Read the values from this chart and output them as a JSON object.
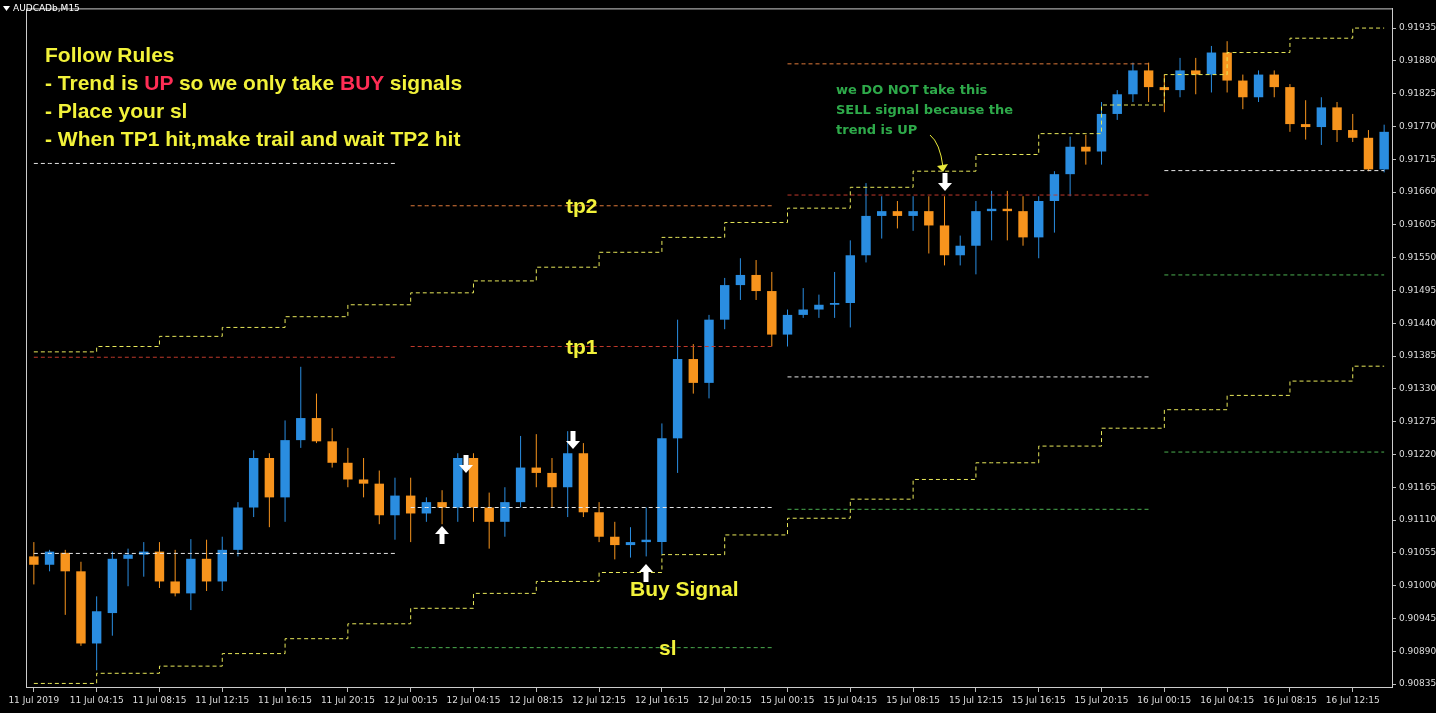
{
  "chart_data": {
    "type": "candlestick",
    "title": "AUDCADb,M15",
    "categories": [
      "11 Jul 2019",
      null,
      null,
      null,
      "11 Jul 04:15",
      null,
      null,
      null,
      "11 Jul 08:15",
      null,
      null,
      null,
      "11 Jul 12:15",
      null,
      null,
      null,
      "11 Jul 16:15",
      null,
      null,
      null,
      "11 Jul 20:15",
      null,
      null,
      null,
      "12 Jul 00:15",
      null,
      null,
      null,
      "12 Jul 04:15",
      null,
      null,
      null,
      "12 Jul 08:15",
      null,
      null,
      null,
      "12 Jul 12:15",
      null,
      null,
      null,
      "12 Jul 16:15",
      null,
      null,
      null,
      "12 Jul 20:15",
      null,
      null,
      null,
      "15 Jul 00:15",
      null,
      null,
      null,
      "15 Jul 04:15",
      null,
      null,
      null,
      "15 Jul 08:15",
      null,
      null,
      null,
      "15 Jul 12:15",
      null,
      null,
      null,
      "15 Jul 16:15",
      null,
      null,
      null,
      "15 Jul 20:15",
      null,
      null,
      null,
      "16 Jul 00:15",
      null,
      null,
      null,
      "16 Jul 04:15",
      null,
      null,
      null,
      "16 Jul 08:15",
      null,
      null,
      null,
      "16 Jul 12:15",
      null,
      null
    ],
    "ohlc": [
      [
        0.91049,
        0.91073,
        0.91002,
        0.91035
      ],
      [
        0.91035,
        0.9106,
        0.91024,
        0.91057
      ],
      [
        0.91055,
        0.9106,
        0.90951,
        0.91024
      ],
      [
        0.91024,
        0.9104,
        0.90899,
        0.90903
      ],
      [
        0.90903,
        0.90982,
        0.90858,
        0.90957
      ],
      [
        0.90954,
        0.91057,
        0.90916,
        0.91045
      ],
      [
        0.91045,
        0.91062,
        0.90999,
        0.91052
      ],
      [
        0.91052,
        0.91073,
        0.91015,
        0.91057
      ],
      [
        0.91057,
        0.91073,
        0.90996,
        0.91007
      ],
      [
        0.91007,
        0.9106,
        0.90982,
        0.90987
      ],
      [
        0.90987,
        0.91078,
        0.90959,
        0.91045
      ],
      [
        0.91045,
        0.91077,
        0.90991,
        0.91007
      ],
      [
        0.91007,
        0.91082,
        0.90991,
        0.9106
      ],
      [
        0.9106,
        0.9114,
        0.91049,
        0.91131
      ],
      [
        0.91131,
        0.91227,
        0.91115,
        0.91214
      ],
      [
        0.91214,
        0.91222,
        0.91098,
        0.91148
      ],
      [
        0.91148,
        0.91277,
        0.91107,
        0.91244
      ],
      [
        0.91244,
        0.91367,
        0.91231,
        0.91281
      ],
      [
        0.91281,
        0.91322,
        0.91239,
        0.91242
      ],
      [
        0.91242,
        0.91264,
        0.91198,
        0.91206
      ],
      [
        0.91206,
        0.91231,
        0.91165,
        0.91178
      ],
      [
        0.91178,
        0.91214,
        0.91148,
        0.91171
      ],
      [
        0.91171,
        0.91193,
        0.91103,
        0.91118
      ],
      [
        0.91118,
        0.91181,
        0.91077,
        0.91151
      ],
      [
        0.91151,
        0.91181,
        0.91073,
        0.91121
      ],
      [
        0.91121,
        0.91148,
        0.91107,
        0.9114
      ],
      [
        0.9114,
        0.9116,
        0.91103,
        0.91131
      ],
      [
        0.91131,
        0.91222,
        0.91107,
        0.91214
      ],
      [
        0.91214,
        0.91222,
        0.91107,
        0.91131
      ],
      [
        0.91131,
        0.91156,
        0.91062,
        0.91107
      ],
      [
        0.91107,
        0.91165,
        0.91082,
        0.9114
      ],
      [
        0.9114,
        0.91251,
        0.91131,
        0.91198
      ],
      [
        0.91198,
        0.91254,
        0.91165,
        0.91189
      ],
      [
        0.91189,
        0.91214,
        0.91131,
        0.91165
      ],
      [
        0.91165,
        0.91259,
        0.91115,
        0.91222
      ],
      [
        0.91222,
        0.91239,
        0.91115,
        0.91123
      ],
      [
        0.91123,
        0.9114,
        0.91073,
        0.91082
      ],
      [
        0.91082,
        0.91107,
        0.91044,
        0.91068
      ],
      [
        0.91068,
        0.91098,
        0.91047,
        0.91073
      ],
      [
        0.91073,
        0.91131,
        0.91049,
        0.91077
      ],
      [
        0.91073,
        0.91272,
        0.91052,
        0.91247
      ],
      [
        0.91247,
        0.91446,
        0.91189,
        0.9138
      ],
      [
        0.9138,
        0.91405,
        0.91322,
        0.9134
      ],
      [
        0.9134,
        0.91454,
        0.91314,
        0.91446
      ],
      [
        0.91446,
        0.91516,
        0.9143,
        0.91504
      ],
      [
        0.91504,
        0.91549,
        0.91479,
        0.91521
      ],
      [
        0.91521,
        0.91546,
        0.91479,
        0.91494
      ],
      [
        0.91494,
        0.91526,
        0.91401,
        0.91421
      ],
      [
        0.91421,
        0.91463,
        0.91401,
        0.91454
      ],
      [
        0.91454,
        0.91499,
        0.91449,
        0.91463
      ],
      [
        0.91463,
        0.91488,
        0.91449,
        0.91471
      ],
      [
        0.91471,
        0.91526,
        0.91449,
        0.91474
      ],
      [
        0.91474,
        0.91579,
        0.91433,
        0.91554
      ],
      [
        0.91554,
        0.91675,
        0.91542,
        0.9162
      ],
      [
        0.9162,
        0.91653,
        0.91582,
        0.91628
      ],
      [
        0.91628,
        0.91645,
        0.91599,
        0.9162
      ],
      [
        0.9162,
        0.91653,
        0.91595,
        0.91628
      ],
      [
        0.91628,
        0.91653,
        0.91557,
        0.91604
      ],
      [
        0.91604,
        0.91653,
        0.91537,
        0.91554
      ],
      [
        0.91554,
        0.91587,
        0.91537,
        0.9157
      ],
      [
        0.9157,
        0.91645,
        0.91522,
        0.91628
      ],
      [
        0.91628,
        0.91662,
        0.91579,
        0.91632
      ],
      [
        0.91632,
        0.91662,
        0.91579,
        0.91628
      ],
      [
        0.91628,
        0.91653,
        0.9157,
        0.91584
      ],
      [
        0.91584,
        0.91653,
        0.91549,
        0.91645
      ],
      [
        0.91645,
        0.91695,
        0.91592,
        0.9169
      ],
      [
        0.9169,
        0.91753,
        0.91653,
        0.91736
      ],
      [
        0.91736,
        0.91756,
        0.91706,
        0.91728
      ],
      [
        0.91728,
        0.91811,
        0.91706,
        0.91791
      ],
      [
        0.91791,
        0.91831,
        0.91781,
        0.91824
      ],
      [
        0.91824,
        0.91877,
        0.91811,
        0.91864
      ],
      [
        0.91864,
        0.91877,
        0.91811,
        0.91836
      ],
      [
        0.91836,
        0.91857,
        0.91794,
        0.91831
      ],
      [
        0.91831,
        0.91885,
        0.91819,
        0.91864
      ],
      [
        0.91864,
        0.91885,
        0.91824,
        0.91857
      ],
      [
        0.91857,
        0.91905,
        0.91827,
        0.91894
      ],
      [
        0.91894,
        0.91913,
        0.91827,
        0.91847
      ],
      [
        0.91847,
        0.91857,
        0.91799,
        0.91819
      ],
      [
        0.91819,
        0.91864,
        0.91811,
        0.91857
      ],
      [
        0.91857,
        0.91864,
        0.91819,
        0.91836
      ],
      [
        0.91836,
        0.91841,
        0.91761,
        0.91774
      ],
      [
        0.91774,
        0.91814,
        0.91748,
        0.91769
      ],
      [
        0.91769,
        0.91819,
        0.91739,
        0.91802
      ],
      [
        0.91802,
        0.91811,
        0.91744,
        0.91764
      ],
      [
        0.91764,
        0.91791,
        0.91744,
        0.91751
      ],
      [
        0.91751,
        0.91764,
        0.91695,
        0.91698
      ],
      [
        0.91698,
        0.91773,
        0.91693,
        0.91761
      ]
    ],
    "colors": [
      "#f7941d",
      "#2a8de0",
      "#f7941d",
      "#f7941d",
      "#2a8de0",
      "#2a8de0",
      "#2a8de0",
      "#2a8de0",
      "#f7941d",
      "#f7941d",
      "#2a8de0",
      "#f7941d",
      "#2a8de0",
      "#2a8de0",
      "#2a8de0",
      "#f7941d",
      "#2a8de0",
      "#2a8de0",
      "#f7941d",
      "#f7941d",
      "#f7941d",
      "#f7941d",
      "#f7941d",
      "#2a8de0",
      "#f7941d",
      "#2a8de0",
      "#f7941d",
      "#2a8de0",
      "#f7941d",
      "#f7941d",
      "#2a8de0",
      "#2a8de0",
      "#f7941d",
      "#f7941d",
      "#2a8de0",
      "#f7941d",
      "#f7941d",
      "#f7941d",
      "#2a8de0",
      "#2a8de0",
      "#2a8de0",
      "#2a8de0",
      "#f7941d",
      "#2a8de0",
      "#2a8de0",
      "#2a8de0",
      "#f7941d",
      "#f7941d",
      "#2a8de0",
      "#2a8de0",
      "#2a8de0",
      "#2a8de0",
      "#2a8de0",
      "#2a8de0",
      "#2a8de0",
      "#f7941d",
      "#2a8de0",
      "#f7941d",
      "#f7941d",
      "#2a8de0",
      "#2a8de0",
      "#2a8de0",
      "#f7941d",
      "#f7941d",
      "#2a8de0",
      "#2a8de0",
      "#2a8de0",
      "#f7941d",
      "#2a8de0",
      "#2a8de0",
      "#2a8de0",
      "#f7941d",
      "#f7941d",
      "#2a8de0",
      "#f7941d",
      "#2a8de0",
      "#f7941d",
      "#f7941d",
      "#2a8de0",
      "#f7941d",
      "#f7941d",
      "#f7941d",
      "#2a8de0",
      "#f7941d",
      "#f7941d",
      "#f7941d",
      "#2a8de0"
    ],
    "ylim": [
      0.9083,
      0.91968
    ],
    "yticks": [
      0.91935,
      {
        "value": 0.9188,
        "label": "0.91880"
      },
      0.91825,
      {
        "value": 0.9177,
        "label": "0.91770"
      },
      0.91715,
      {
        "value": 0.9166,
        "label": "0.91660"
      },
      0.91605,
      {
        "value": 0.9155,
        "label": "0.91550"
      },
      0.91495,
      {
        "value": 0.9144,
        "label": "0.91440"
      },
      0.91385,
      {
        "value": 0.9133,
        "label": "0.91330"
      },
      0.91275,
      {
        "value": 0.9122,
        "label": "0.91220"
      },
      0.91165,
      {
        "value": 0.9111,
        "label": "0.91110"
      },
      0.91055,
      {
        "value": 0.91,
        "label": "0.91000"
      },
      0.90945,
      {
        "value": 0.9089,
        "label": "0.90890"
      },
      0.90835
    ],
    "line_style": "dashed",
    "series": [
      {
        "type": "step",
        "color": "#e8e85a",
        "values": [
          0.91392,
          0.91392,
          0.91392,
          0.91392,
          0.91401,
          0.91401,
          0.91401,
          0.91401,
          0.91418,
          0.91418,
          0.91418,
          0.91418,
          0.91433,
          0.91433,
          0.91433,
          0.91433,
          0.91451,
          0.91451,
          0.91451,
          0.91451,
          0.91471,
          0.91471,
          0.91471,
          0.91471,
          0.91491,
          0.91491,
          0.91491,
          0.91491,
          0.91511,
          0.91511,
          0.91511,
          0.91511,
          0.91534,
          0.91534,
          0.91534,
          0.91534,
          0.91559,
          0.91559,
          0.91559,
          0.91559,
          0.91584,
          0.91584,
          0.91584,
          0.91584,
          0.91609,
          0.91609,
          0.91609,
          0.91609,
          0.91633,
          0.91633,
          0.91633,
          0.91633,
          0.91668,
          0.91668,
          0.91668,
          0.91668,
          0.91695,
          0.91695,
          0.91695,
          0.91695,
          0.91723,
          0.91723,
          0.91723,
          0.91723,
          0.91758,
          0.91758,
          0.91758,
          0.91758,
          0.91806,
          0.91806,
          0.91806,
          0.91806,
          0.91857,
          0.91857,
          0.91857,
          0.91857,
          0.91894,
          0.91894,
          0.91894,
          0.91894,
          0.91918,
          0.91918,
          0.91918,
          0.91918,
          0.91935,
          0.91935,
          0.91935
        ]
      },
      {
        "type": "step",
        "color": "#e8e85a",
        "values": [
          0.90836,
          0.90836,
          0.90836,
          0.90836,
          0.90853,
          0.90853,
          0.90853,
          0.90853,
          0.90865,
          0.90865,
          0.90865,
          0.90865,
          0.90886,
          0.90886,
          0.90886,
          0.90886,
          0.90911,
          0.90911,
          0.90911,
          0.90911,
          0.90936,
          0.90936,
          0.90936,
          0.90936,
          0.90962,
          0.90962,
          0.90962,
          0.90962,
          0.90987,
          0.90987,
          0.90987,
          0.90987,
          0.91007,
          0.91007,
          0.91007,
          0.91007,
          0.91022,
          0.91022,
          0.91022,
          0.91022,
          0.91052,
          0.91052,
          0.91052,
          0.91052,
          0.91085,
          0.91085,
          0.91085,
          0.91085,
          0.91113,
          0.91113,
          0.91113,
          0.91113,
          0.91145,
          0.91145,
          0.91145,
          0.91145,
          0.91178,
          0.91178,
          0.91178,
          0.91178,
          0.91206,
          0.91206,
          0.91206,
          0.91206,
          0.91234,
          0.91234,
          0.91234,
          0.91234,
          0.91264,
          0.91264,
          0.91264,
          0.91264,
          0.91295,
          0.91295,
          0.91295,
          0.91295,
          0.91319,
          0.91319,
          0.91319,
          0.91319,
          0.91343,
          0.91343,
          0.91343,
          0.91343,
          0.91368,
          0.91368,
          0.91368
        ]
      },
      {
        "type": "line",
        "color": "#e6e6e6",
        "values": [
          0.91708,
          0.91708,
          0.91708,
          0.91708,
          0.91708,
          0.91708,
          0.91708,
          0.91708,
          0.91708,
          0.91708,
          0.91708,
          0.91708,
          0.91708,
          0.91708,
          0.91708,
          0.91708,
          0.91708,
          0.91708,
          0.91708,
          0.91708,
          0.91708,
          0.91708,
          0.91708,
          0.91708,
          null,
          null,
          null,
          null,
          null,
          null,
          null,
          null,
          null,
          null,
          null,
          null,
          null,
          null,
          null,
          null,
          null,
          null,
          null,
          null,
          null,
          null,
          null,
          null,
          null,
          null,
          null,
          null,
          null,
          null,
          null,
          null,
          null,
          null,
          null,
          null,
          null,
          null,
          null,
          null,
          null,
          null,
          null,
          null,
          null,
          null,
          null,
          null,
          null,
          null,
          null,
          null,
          null,
          null,
          null,
          null,
          null,
          null,
          null,
          null,
          null,
          null,
          null
        ]
      },
      {
        "type": "line",
        "color": "#c0392b",
        "values": [
          0.91383,
          0.91383,
          0.91383,
          0.91383,
          0.91383,
          0.91383,
          0.91383,
          0.91383,
          0.91383,
          0.91383,
          0.91383,
          0.91383,
          0.91383,
          0.91383,
          0.91383,
          0.91383,
          0.91383,
          0.91383,
          0.91383,
          0.91383,
          0.91383,
          0.91383,
          0.91383,
          0.91383,
          null,
          null,
          null,
          null,
          null,
          null,
          null,
          null,
          null,
          null,
          null,
          null,
          null,
          null,
          null,
          null,
          null,
          null,
          null,
          null,
          null,
          null,
          null,
          null,
          null,
          null,
          null,
          null,
          null,
          null,
          null,
          null,
          null,
          null,
          null,
          null,
          null,
          null,
          null,
          null,
          null,
          null,
          null,
          null,
          null,
          null,
          null,
          null,
          null,
          null,
          null,
          null,
          null,
          null,
          null,
          null,
          null,
          null,
          null,
          null,
          null,
          null,
          null
        ]
      },
      {
        "type": "line",
        "color": "#e6e6e6",
        "values": [
          0.91054,
          0.91054,
          0.91054,
          0.91054,
          0.91054,
          0.91054,
          0.91054,
          0.91054,
          0.91054,
          0.91054,
          0.91054,
          0.91054,
          0.91054,
          0.91054,
          0.91054,
          0.91054,
          0.91054,
          0.91054,
          0.91054,
          0.91054,
          0.91054,
          0.91054,
          0.91054,
          0.91054,
          null,
          null,
          null,
          null,
          null,
          null,
          null,
          null,
          null,
          null,
          null,
          null,
          null,
          null,
          null,
          null,
          null,
          null,
          null,
          null,
          null,
          null,
          null,
          null,
          null,
          null,
          null,
          null,
          null,
          null,
          null,
          null,
          null,
          null,
          null,
          null,
          null,
          null,
          null,
          null,
          null,
          null,
          null,
          null,
          null,
          null,
          null,
          null,
          null,
          null,
          null,
          null,
          null,
          null,
          null,
          null,
          null,
          null,
          null,
          null,
          null,
          null,
          null
        ]
      },
      {
        "type": "line",
        "color": "#e07a3a",
        "values": [
          null,
          null,
          null,
          null,
          null,
          null,
          null,
          null,
          null,
          null,
          null,
          null,
          null,
          null,
          null,
          null,
          null,
          null,
          null,
          null,
          null,
          null,
          null,
          null,
          0.91637,
          0.91637,
          0.91637,
          0.91637,
          0.91637,
          0.91637,
          0.91637,
          0.91637,
          0.91637,
          0.91637,
          0.91637,
          0.91637,
          0.91637,
          0.91637,
          0.91637,
          0.91637,
          0.91637,
          0.91637,
          0.91637,
          0.91637,
          0.91637,
          0.91637,
          0.91637,
          0.91637,
          null,
          null,
          null,
          null,
          null,
          null,
          null,
          null,
          null,
          null,
          null,
          null,
          null,
          null,
          null,
          null,
          null,
          null,
          null,
          null,
          null,
          null,
          null,
          null,
          null,
          null,
          null,
          null,
          null,
          null,
          null,
          null,
          null,
          null,
          null,
          null,
          null,
          null,
          null
        ]
      },
      {
        "type": "line",
        "color": "#c0392b",
        "values": [
          null,
          null,
          null,
          null,
          null,
          null,
          null,
          null,
          null,
          null,
          null,
          null,
          null,
          null,
          null,
          null,
          null,
          null,
          null,
          null,
          null,
          null,
          null,
          null,
          0.91401,
          0.91401,
          0.91401,
          0.91401,
          0.91401,
          0.91401,
          0.91401,
          0.91401,
          0.91401,
          0.91401,
          0.91401,
          0.91401,
          0.91401,
          0.91401,
          0.91401,
          0.91401,
          0.91401,
          0.91401,
          0.91401,
          0.91401,
          0.91401,
          0.91401,
          0.91401,
          0.91401,
          null,
          null,
          null,
          null,
          null,
          null,
          null,
          null,
          null,
          null,
          null,
          null,
          null,
          null,
          null,
          null,
          null,
          null,
          null,
          null,
          null,
          null,
          null,
          null,
          null,
          null,
          null,
          null,
          null,
          null,
          null,
          null,
          null,
          null,
          null,
          null,
          null,
          null,
          null
        ]
      },
      {
        "type": "line",
        "color": "#e6e6e6",
        "values": [
          null,
          null,
          null,
          null,
          null,
          null,
          null,
          null,
          null,
          null,
          null,
          null,
          null,
          null,
          null,
          null,
          null,
          null,
          null,
          null,
          null,
          null,
          null,
          null,
          0.91131,
          0.91131,
          0.91131,
          0.91131,
          0.91131,
          0.91131,
          0.91131,
          0.91131,
          0.91131,
          0.91131,
          0.91131,
          0.91131,
          0.91131,
          0.91131,
          0.91131,
          0.91131,
          0.91131,
          0.91131,
          0.91131,
          0.91131,
          0.91131,
          0.91131,
          0.91131,
          0.91131,
          null,
          null,
          null,
          null,
          null,
          null,
          null,
          null,
          null,
          null,
          null,
          null,
          null,
          null,
          null,
          null,
          null,
          null,
          null,
          null,
          null,
          null,
          null,
          null,
          null,
          null,
          null,
          null,
          null,
          null,
          null,
          null,
          null,
          null,
          null,
          null,
          null,
          null,
          null
        ]
      },
      {
        "type": "line",
        "color": "#4caf50",
        "values": [
          null,
          null,
          null,
          null,
          null,
          null,
          null,
          null,
          null,
          null,
          null,
          null,
          null,
          null,
          null,
          null,
          null,
          null,
          null,
          null,
          null,
          null,
          null,
          null,
          0.90896,
          0.90896,
          0.90896,
          0.90896,
          0.90896,
          0.90896,
          0.90896,
          0.90896,
          0.90896,
          0.90896,
          0.90896,
          0.90896,
          0.90896,
          0.90896,
          0.90896,
          0.90896,
          0.90896,
          0.90896,
          0.90896,
          0.90896,
          0.90896,
          0.90896,
          0.90896,
          0.90896,
          null,
          null,
          null,
          null,
          null,
          null,
          null,
          null,
          null,
          null,
          null,
          null,
          null,
          null,
          null,
          null,
          null,
          null,
          null,
          null,
          null,
          null,
          null,
          null,
          null,
          null,
          null,
          null,
          null,
          null,
          null,
          null,
          null,
          null,
          null,
          null,
          null,
          null,
          null
        ]
      },
      {
        "type": "line",
        "color": "#e07a3a",
        "values": [
          null,
          null,
          null,
          null,
          null,
          null,
          null,
          null,
          null,
          null,
          null,
          null,
          null,
          null,
          null,
          null,
          null,
          null,
          null,
          null,
          null,
          null,
          null,
          null,
          null,
          null,
          null,
          null,
          null,
          null,
          null,
          null,
          null,
          null,
          null,
          null,
          null,
          null,
          null,
          null,
          null,
          null,
          null,
          null,
          null,
          null,
          null,
          null,
          0.91875,
          0.91875,
          0.91875,
          0.91875,
          0.91875,
          0.91875,
          0.91875,
          0.91875,
          0.91875,
          0.91875,
          0.91875,
          0.91875,
          0.91875,
          0.91875,
          0.91875,
          0.91875,
          0.91875,
          0.91875,
          0.91875,
          0.91875,
          0.91875,
          0.91875,
          0.91875,
          0.91875,
          null,
          null,
          null,
          null,
          null,
          null,
          null,
          null,
          null,
          null,
          null,
          null,
          null,
          null,
          null
        ]
      },
      {
        "type": "line",
        "color": "#c0392b",
        "values": [
          null,
          null,
          null,
          null,
          null,
          null,
          null,
          null,
          null,
          null,
          null,
          null,
          null,
          null,
          null,
          null,
          null,
          null,
          null,
          null,
          null,
          null,
          null,
          null,
          null,
          null,
          null,
          null,
          null,
          null,
          null,
          null,
          null,
          null,
          null,
          null,
          null,
          null,
          null,
          null,
          null,
          null,
          null,
          null,
          null,
          null,
          null,
          null,
          0.91655,
          0.91655,
          0.91655,
          0.91655,
          0.91655,
          0.91655,
          0.91655,
          0.91655,
          0.91655,
          0.91655,
          0.91655,
          0.91655,
          0.91655,
          0.91655,
          0.91655,
          0.91655,
          0.91655,
          0.91655,
          0.91655,
          0.91655,
          0.91655,
          0.91655,
          0.91655,
          0.91655,
          null,
          null,
          null,
          null,
          null,
          null,
          null,
          null,
          null,
          null,
          null,
          null,
          null,
          null,
          null
        ]
      },
      {
        "type": "line",
        "color": "#e6e6e6",
        "values": [
          null,
          null,
          null,
          null,
          null,
          null,
          null,
          null,
          null,
          null,
          null,
          null,
          null,
          null,
          null,
          null,
          null,
          null,
          null,
          null,
          null,
          null,
          null,
          null,
          null,
          null,
          null,
          null,
          null,
          null,
          null,
          null,
          null,
          null,
          null,
          null,
          null,
          null,
          null,
          null,
          null,
          null,
          null,
          null,
          null,
          null,
          null,
          null,
          0.9135,
          0.9135,
          0.9135,
          0.9135,
          0.9135,
          0.9135,
          0.9135,
          0.9135,
          0.9135,
          0.9135,
          0.9135,
          0.9135,
          0.9135,
          0.9135,
          0.9135,
          0.9135,
          0.9135,
          0.9135,
          0.9135,
          0.9135,
          0.9135,
          0.9135,
          0.9135,
          0.9135,
          null,
          null,
          null,
          null,
          null,
          null,
          null,
          null,
          null,
          null,
          null,
          null,
          null,
          null,
          null
        ]
      },
      {
        "type": "line",
        "color": "#4caf50",
        "values": [
          null,
          null,
          null,
          null,
          null,
          null,
          null,
          null,
          null,
          null,
          null,
          null,
          null,
          null,
          null,
          null,
          null,
          null,
          null,
          null,
          null,
          null,
          null,
          null,
          null,
          null,
          null,
          null,
          null,
          null,
          null,
          null,
          null,
          null,
          null,
          null,
          null,
          null,
          null,
          null,
          null,
          null,
          null,
          null,
          null,
          null,
          null,
          null,
          0.91128,
          0.91128,
          0.91128,
          0.91128,
          0.91128,
          0.91128,
          0.91128,
          0.91128,
          0.91128,
          0.91128,
          0.91128,
          0.91128,
          0.91128,
          0.91128,
          0.91128,
          0.91128,
          0.91128,
          0.91128,
          0.91128,
          0.91128,
          0.91128,
          0.91128,
          0.91128,
          0.91128,
          null,
          null,
          null,
          null,
          null,
          null,
          null,
          null,
          null,
          null,
          null,
          null,
          null,
          null,
          null
        ]
      },
      {
        "type": "line",
        "color": "#e6e6e6",
        "values": [
          null,
          null,
          null,
          null,
          null,
          null,
          null,
          null,
          null,
          null,
          null,
          null,
          null,
          null,
          null,
          null,
          null,
          null,
          null,
          null,
          null,
          null,
          null,
          null,
          null,
          null,
          null,
          null,
          null,
          null,
          null,
          null,
          null,
          null,
          null,
          null,
          null,
          null,
          null,
          null,
          null,
          null,
          null,
          null,
          null,
          null,
          null,
          null,
          null,
          null,
          null,
          null,
          null,
          null,
          null,
          null,
          null,
          null,
          null,
          null,
          null,
          null,
          null,
          null,
          null,
          null,
          null,
          null,
          null,
          null,
          null,
          null,
          0.91696,
          0.91696,
          0.91696,
          0.91696,
          0.91696,
          0.91696,
          0.91696,
          0.91696,
          0.91696,
          0.91696,
          0.91696,
          0.91696,
          0.91696,
          0.91696,
          0.91696
        ]
      },
      {
        "type": "line",
        "color": "#4caf50",
        "values": [
          null,
          null,
          null,
          null,
          null,
          null,
          null,
          null,
          null,
          null,
          null,
          null,
          null,
          null,
          null,
          null,
          null,
          null,
          null,
          null,
          null,
          null,
          null,
          null,
          null,
          null,
          null,
          null,
          null,
          null,
          null,
          null,
          null,
          null,
          null,
          null,
          null,
          null,
          null,
          null,
          null,
          null,
          null,
          null,
          null,
          null,
          null,
          null,
          null,
          null,
          null,
          null,
          null,
          null,
          null,
          null,
          null,
          null,
          null,
          null,
          null,
          null,
          null,
          null,
          null,
          null,
          null,
          null,
          null,
          null,
          null,
          null,
          0.91521,
          0.91521,
          0.91521,
          0.91521,
          0.91521,
          0.91521,
          0.91521,
          0.91521,
          0.91521,
          0.91521,
          0.91521,
          0.91521,
          0.91521,
          0.91521,
          0.91521
        ]
      },
      {
        "type": "line",
        "color": "#4caf50",
        "values": [
          null,
          null,
          null,
          null,
          null,
          null,
          null,
          null,
          null,
          null,
          null,
          null,
          null,
          null,
          null,
          null,
          null,
          null,
          null,
          null,
          null,
          null,
          null,
          null,
          null,
          null,
          null,
          null,
          null,
          null,
          null,
          null,
          null,
          null,
          null,
          null,
          null,
          null,
          null,
          null,
          null,
          null,
          null,
          null,
          null,
          null,
          null,
          null,
          null,
          null,
          null,
          null,
          null,
          null,
          null,
          null,
          null,
          null,
          null,
          null,
          null,
          null,
          null,
          null,
          null,
          null,
          null,
          null,
          null,
          null,
          null,
          null,
          0.91224,
          0.91224,
          0.91224,
          0.91224,
          0.91224,
          0.91224,
          0.91224,
          0.91224,
          0.91224,
          0.91224,
          0.91224,
          0.91224,
          0.91224,
          0.91224,
          0.91224
        ]
      }
    ],
    "annotations": [
      "Follow Rules",
      "- Trend is UP so we only take BUY signals",
      "- Place your sl",
      "- When TP1 hit,make trail and wait TP2 hit",
      {
        "text": "tp2",
        "y": 0.91637
      },
      {
        "text": "tp1",
        "y": 0.91401
      },
      {
        "text": "sl",
        "y": 0.90896
      },
      "Buy Signal",
      "we DO NOT take this SELL signal because the trend is UP"
    ]
  }
}
